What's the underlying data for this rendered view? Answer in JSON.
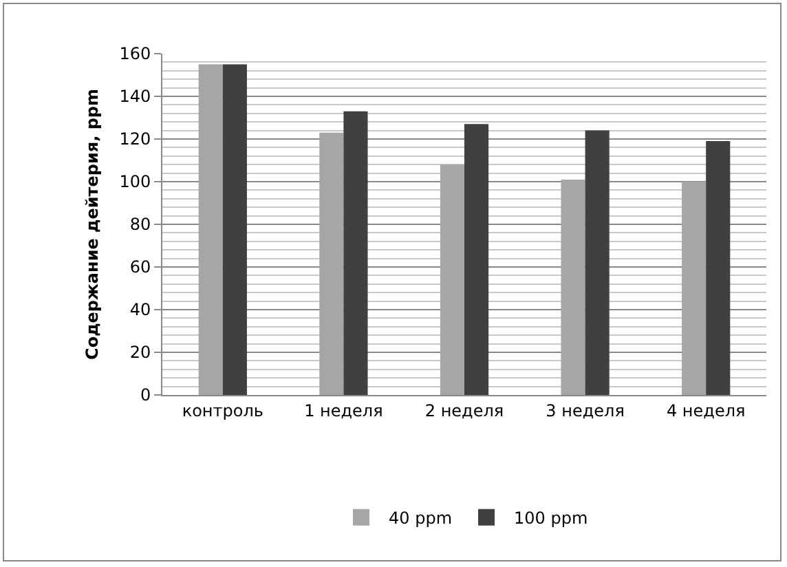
{
  "chart_data": {
    "type": "bar",
    "ylabel": "Содержание дейтерия, ppm",
    "categories": [
      "контроль",
      "1 неделя",
      "2 неделя",
      "3 неделя",
      "4 неделя"
    ],
    "series": [
      {
        "name": "40 ppm",
        "color": "#a6a6a6",
        "values": [
          155,
          123,
          108,
          101,
          100
        ]
      },
      {
        "name": "100 ppm",
        "color": "#404040",
        "values": [
          155,
          133,
          127,
          124,
          119
        ]
      }
    ],
    "ylim": [
      0,
      160
    ],
    "yticks": [
      0,
      20,
      40,
      60,
      80,
      100,
      120,
      140,
      160
    ],
    "grid": "y",
    "legend": "bottom"
  }
}
